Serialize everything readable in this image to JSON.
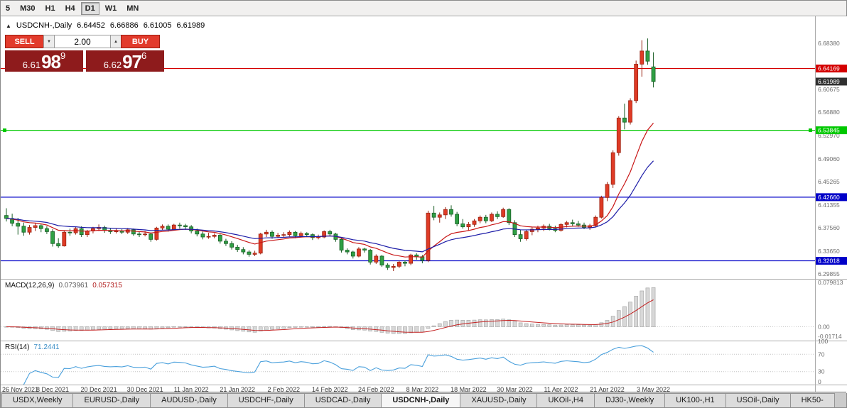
{
  "icons": {
    "collapse_arrow": "▲",
    "volume_up": "▲",
    "volume_down": "▼"
  },
  "toolbar": {
    "periods": [
      {
        "label": "5"
      },
      {
        "label": "M30"
      },
      {
        "label": "H1"
      },
      {
        "label": "H4"
      },
      {
        "label": "D1",
        "active": true
      },
      {
        "label": "W1"
      },
      {
        "label": "MN"
      }
    ]
  },
  "chart": {
    "title": "USDCNH-,Daily",
    "ohlc": {
      "o": "6.64452",
      "h": "6.66886",
      "l": "6.61005",
      "c": "6.61989"
    },
    "price_axis": [
      "6.68380",
      "6.60675",
      "6.56880",
      "6.52970",
      "6.49060",
      "6.45265",
      "6.41355",
      "6.37560",
      "6.33650",
      "6.29855"
    ],
    "current_price": {
      "label": "6.61989",
      "value": 6.61989,
      "badge_color": "#303030"
    },
    "levels": [
      {
        "value": 6.64169,
        "label": "6.64169",
        "color": "#d40000"
      },
      {
        "value": 6.53845,
        "label": "6.53845",
        "color": "#00c800",
        "handles": true
      },
      {
        "value": 6.4266,
        "label": "6.42660",
        "color": "#0000c8"
      },
      {
        "value": 6.32018,
        "label": "6.32018",
        "color": "#0000c8"
      }
    ]
  },
  "trade": {
    "sell_label": "SELL",
    "buy_label": "BUY",
    "volume": "2.00",
    "bid": {
      "prefix": "6.61",
      "big": "98",
      "sup": "9"
    },
    "ask": {
      "prefix": "6.62",
      "big": "97",
      "sup": "6"
    }
  },
  "indicators": {
    "macd": {
      "name": "MACD(12,26,9)",
      "value": "0.073961",
      "signal": "0.057315",
      "axis": [
        {
          "label": "0.079813",
          "value": 0.079813
        },
        {
          "label": "0.00",
          "value": 0
        },
        {
          "label": "-0.01714",
          "value": -0.01714
        }
      ]
    },
    "rsi": {
      "name": "RSI(14)",
      "value": "71.2441",
      "axis": [
        {
          "label": "100",
          "value": 100
        },
        {
          "label": "70",
          "value": 70
        },
        {
          "label": "30",
          "value": 30
        },
        {
          "label": "0",
          "value": 0
        }
      ]
    }
  },
  "tabs": [
    {
      "label": "USDX,Weekly"
    },
    {
      "label": "EURUSD-,Daily"
    },
    {
      "label": "AUDUSD-,Daily"
    },
    {
      "label": "USDCHF-,Daily"
    },
    {
      "label": "USDCAD-,Daily"
    },
    {
      "label": "USDCNH-,Daily",
      "active": true
    },
    {
      "label": "XAUUSD-,Daily"
    },
    {
      "label": "UKOil-,H4"
    },
    {
      "label": "DJ30-,Weekly"
    },
    {
      "label": "UK100-,H1"
    },
    {
      "label": "USOil-,Daily"
    },
    {
      "label": "HK50-"
    }
  ],
  "colors": {
    "bull": "#df3b26",
    "bull_border": "#9a2413",
    "bear": "#2fa044",
    "bear_border": "#1a5e26",
    "ma_fast": "#c81616",
    "ma_slow": "#1d1da8",
    "macd_bar": "#d8d8d8",
    "macd_bar_border": "#a9a9a9",
    "macd_signal": "#c32222",
    "rsi_line": "#4aa0dc",
    "axis_text": "#6e6e6e"
  },
  "chart_data": {
    "type": "candlestick",
    "symbol": "USDCNH-",
    "timeframe": "Daily",
    "price_range_visible": [
      6.29,
      6.729
    ],
    "x_ticks_every": 8,
    "x_tick_labels": [
      "26 Nov 2021",
      "8 Dec 2021",
      "20 Dec 2021",
      "30 Dec 2021",
      "11 Jan 2022",
      "21 Jan 2022",
      "2 Feb 2022",
      "14 Feb 2022",
      "24 Feb 2022",
      "8 Mar 2022",
      "18 Mar 2022",
      "30 Mar 2022",
      "11 Apr 2022",
      "21 Apr 2022",
      "3 May 2022"
    ],
    "moving_averages": [
      {
        "method": "ema",
        "period": 13,
        "color_ref": "ma_fast"
      },
      {
        "method": "ema",
        "period": 26,
        "color_ref": "ma_slow"
      }
    ],
    "macd_settings": {
      "fast": 12,
      "slow": 26,
      "signal": 9
    },
    "rsi_settings": {
      "period": 14
    },
    "candles": [
      [
        6.396,
        6.408,
        6.386,
        6.391
      ],
      [
        6.391,
        6.399,
        6.378,
        6.383
      ],
      [
        6.383,
        6.392,
        6.364,
        6.378
      ],
      [
        6.378,
        6.384,
        6.362,
        6.368
      ],
      [
        6.368,
        6.38,
        6.364,
        6.376
      ],
      [
        6.376,
        6.383,
        6.37,
        6.379
      ],
      [
        6.379,
        6.382,
        6.368,
        6.374
      ],
      [
        6.374,
        6.378,
        6.365,
        6.369
      ],
      [
        6.369,
        6.373,
        6.344,
        6.349
      ],
      [
        6.349,
        6.358,
        6.342,
        6.345
      ],
      [
        6.345,
        6.37,
        6.344,
        6.368
      ],
      [
        6.368,
        6.374,
        6.362,
        6.367
      ],
      [
        6.367,
        6.377,
        6.364,
        6.374
      ],
      [
        6.374,
        6.378,
        6.36,
        6.364
      ],
      [
        6.364,
        6.372,
        6.36,
        6.37
      ],
      [
        6.37,
        6.377,
        6.366,
        6.374
      ],
      [
        6.374,
        6.381,
        6.37,
        6.376
      ],
      [
        6.376,
        6.379,
        6.367,
        6.371
      ],
      [
        6.371,
        6.375,
        6.365,
        6.369
      ],
      [
        6.369,
        6.374,
        6.366,
        6.37
      ],
      [
        6.37,
        6.373,
        6.365,
        6.368
      ],
      [
        6.368,
        6.375,
        6.365,
        6.372
      ],
      [
        6.372,
        6.374,
        6.362,
        6.365
      ],
      [
        6.365,
        6.369,
        6.36,
        6.364
      ],
      [
        6.364,
        6.37,
        6.361,
        6.365
      ],
      [
        6.365,
        6.367,
        6.352,
        6.356
      ],
      [
        6.356,
        6.377,
        6.354,
        6.375
      ],
      [
        6.375,
        6.381,
        6.371,
        6.378
      ],
      [
        6.378,
        6.381,
        6.369,
        6.373
      ],
      [
        6.373,
        6.382,
        6.371,
        6.38
      ],
      [
        6.38,
        6.384,
        6.374,
        6.379
      ],
      [
        6.379,
        6.382,
        6.372,
        6.377
      ],
      [
        6.377,
        6.38,
        6.366,
        6.37
      ],
      [
        6.37,
        6.374,
        6.361,
        6.365
      ],
      [
        6.365,
        6.369,
        6.356,
        6.36
      ],
      [
        6.36,
        6.367,
        6.357,
        6.361
      ],
      [
        6.361,
        6.366,
        6.358,
        6.363
      ],
      [
        6.363,
        6.365,
        6.349,
        6.353
      ],
      [
        6.353,
        6.357,
        6.345,
        6.349
      ],
      [
        6.349,
        6.353,
        6.339,
        6.343
      ],
      [
        6.343,
        6.347,
        6.335,
        6.339
      ],
      [
        6.339,
        6.343,
        6.331,
        6.335
      ],
      [
        6.335,
        6.338,
        6.327,
        6.331
      ],
      [
        6.331,
        6.337,
        6.328,
        6.333
      ],
      [
        6.333,
        6.367,
        6.331,
        6.365
      ],
      [
        6.365,
        6.372,
        6.36,
        6.368
      ],
      [
        6.368,
        6.371,
        6.357,
        6.361
      ],
      [
        6.361,
        6.367,
        6.358,
        6.363
      ],
      [
        6.363,
        6.368,
        6.359,
        6.364
      ],
      [
        6.364,
        6.371,
        6.361,
        6.368
      ],
      [
        6.368,
        6.37,
        6.358,
        6.362
      ],
      [
        6.362,
        6.369,
        6.359,
        6.366
      ],
      [
        6.366,
        6.368,
        6.36,
        6.364
      ],
      [
        6.364,
        6.366,
        6.355,
        6.359
      ],
      [
        6.359,
        6.364,
        6.356,
        6.36
      ],
      [
        6.36,
        6.371,
        6.358,
        6.369
      ],
      [
        6.369,
        6.372,
        6.362,
        6.365
      ],
      [
        6.365,
        6.367,
        6.352,
        6.356
      ],
      [
        6.356,
        6.358,
        6.334,
        6.338
      ],
      [
        6.338,
        6.341,
        6.331,
        6.335
      ],
      [
        6.335,
        6.337,
        6.324,
        6.328
      ],
      [
        6.328,
        6.343,
        6.326,
        6.34
      ],
      [
        6.34,
        6.342,
        6.334,
        6.338
      ],
      [
        6.338,
        6.34,
        6.314,
        6.318
      ],
      [
        6.318,
        6.331,
        6.315,
        6.328
      ],
      [
        6.328,
        6.33,
        6.31,
        6.313
      ],
      [
        6.313,
        6.316,
        6.305,
        6.309
      ],
      [
        6.309,
        6.315,
        6.303,
        6.311
      ],
      [
        6.311,
        6.32,
        6.308,
        6.318
      ],
      [
        6.318,
        6.321,
        6.311,
        6.316
      ],
      [
        6.316,
        6.332,
        6.313,
        6.33
      ],
      [
        6.33,
        6.333,
        6.322,
        6.327
      ],
      [
        6.327,
        6.33,
        6.316,
        6.321
      ],
      [
        6.321,
        6.404,
        6.318,
        6.4
      ],
      [
        6.4,
        6.412,
        6.388,
        6.393
      ],
      [
        6.393,
        6.401,
        6.384,
        6.397
      ],
      [
        6.397,
        6.41,
        6.39,
        6.406
      ],
      [
        6.406,
        6.413,
        6.394,
        6.398
      ],
      [
        6.398,
        6.402,
        6.378,
        6.382
      ],
      [
        6.382,
        6.39,
        6.374,
        6.377
      ],
      [
        6.377,
        6.385,
        6.371,
        6.381
      ],
      [
        6.381,
        6.39,
        6.377,
        6.387
      ],
      [
        6.387,
        6.396,
        6.383,
        6.393
      ],
      [
        6.393,
        6.397,
        6.383,
        6.387
      ],
      [
        6.387,
        6.401,
        6.385,
        6.398
      ],
      [
        6.398,
        6.403,
        6.39,
        6.394
      ],
      [
        6.394,
        6.409,
        6.392,
        6.406
      ],
      [
        6.406,
        6.408,
        6.38,
        6.384
      ],
      [
        6.384,
        6.388,
        6.36,
        6.364
      ],
      [
        6.364,
        6.372,
        6.352,
        6.357
      ],
      [
        6.357,
        6.372,
        6.354,
        6.369
      ],
      [
        6.369,
        6.376,
        6.363,
        6.373
      ],
      [
        6.373,
        6.379,
        6.368,
        6.375
      ],
      [
        6.375,
        6.381,
        6.37,
        6.378
      ],
      [
        6.378,
        6.382,
        6.371,
        6.374
      ],
      [
        6.374,
        6.379,
        6.368,
        6.371
      ],
      [
        6.371,
        6.383,
        6.369,
        6.381
      ],
      [
        6.381,
        6.387,
        6.376,
        6.384
      ],
      [
        6.384,
        6.389,
        6.378,
        6.382
      ],
      [
        6.382,
        6.387,
        6.377,
        6.38
      ],
      [
        6.38,
        6.384,
        6.373,
        6.376
      ],
      [
        6.376,
        6.382,
        6.372,
        6.379
      ],
      [
        6.379,
        6.396,
        6.377,
        6.393
      ],
      [
        6.393,
        6.429,
        6.391,
        6.426
      ],
      [
        6.426,
        6.452,
        6.42,
        6.448
      ],
      [
        6.448,
        6.505,
        6.442,
        6.501
      ],
      [
        6.501,
        6.562,
        6.496,
        6.559
      ],
      [
        6.559,
        6.583,
        6.54,
        6.552
      ],
      [
        6.552,
        6.592,
        6.548,
        6.588
      ],
      [
        6.588,
        6.655,
        6.584,
        6.649
      ],
      [
        6.649,
        6.689,
        6.628,
        6.671
      ],
      [
        6.671,
        6.692,
        6.648,
        6.654
      ],
      [
        6.64452,
        6.66886,
        6.61005,
        6.61989
      ]
    ]
  }
}
